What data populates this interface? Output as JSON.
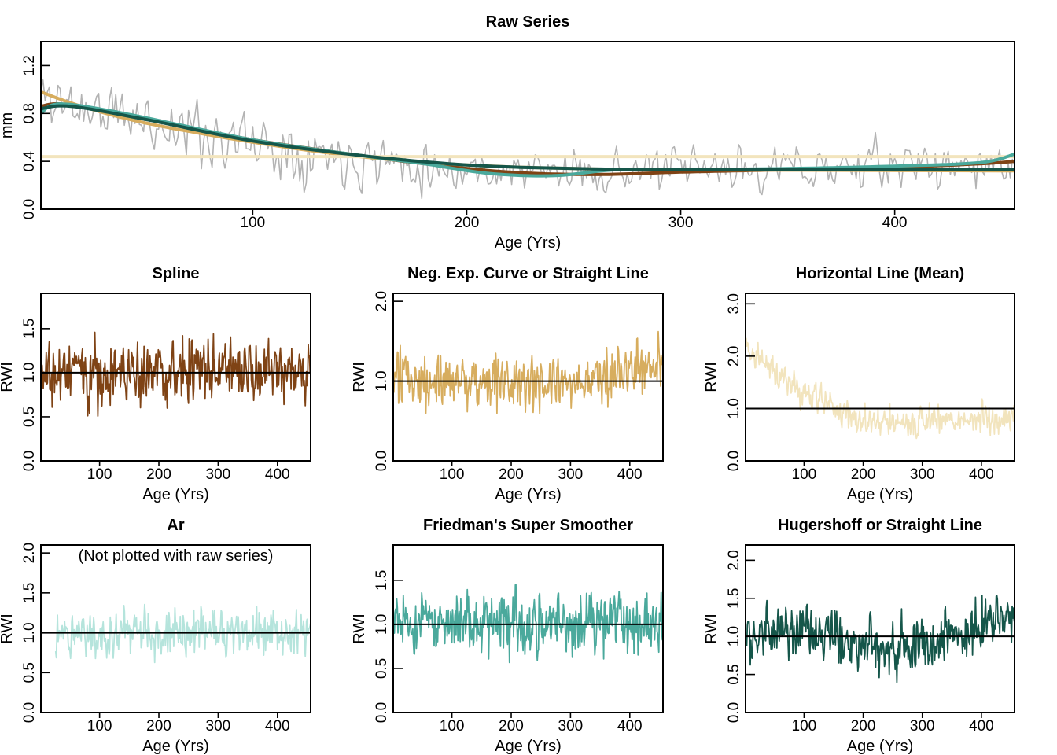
{
  "chart_data": [
    {
      "type": "line",
      "title": "Raw Series",
      "xlabel": "Age (Yrs)",
      "ylabel": "mm",
      "xlim": [
        1,
        456
      ],
      "ylim": [
        0.0,
        1.4
      ],
      "xticks": [
        100,
        200,
        300,
        400
      ],
      "yticks": [
        0.0,
        0.4,
        0.8,
        1.2
      ],
      "yticklabels": [
        "0.0",
        "0.4",
        "0.8",
        "1.2"
      ],
      "raw_series": {
        "color": "#b3b3b3",
        "n": 456,
        "level": [
          [
            1,
            0.95
          ],
          [
            20,
            0.85
          ],
          [
            60,
            0.7
          ],
          [
            100,
            0.55
          ],
          [
            150,
            0.44
          ],
          [
            200,
            0.33
          ],
          [
            250,
            0.31
          ],
          [
            300,
            0.33
          ],
          [
            400,
            0.36
          ],
          [
            456,
            0.38
          ]
        ],
        "amp": 0.38,
        "seed": 11,
        "min": 0.02,
        "max": 1.35
      },
      "curves": [
        {
          "name": "Spline",
          "color": "#7f4315",
          "points": [
            [
              1,
              0.86
            ],
            [
              10,
              0.88
            ],
            [
              30,
              0.82
            ],
            [
              60,
              0.72
            ],
            [
              100,
              0.58
            ],
            [
              150,
              0.45
            ],
            [
              180,
              0.38
            ],
            [
              220,
              0.31
            ],
            [
              260,
              0.29
            ],
            [
              300,
              0.31
            ],
            [
              350,
              0.33
            ],
            [
              400,
              0.35
            ],
            [
              440,
              0.38
            ],
            [
              456,
              0.4
            ]
          ]
        },
        {
          "name": "Neg. Exp. Curve or Straight Line",
          "color": "#d7ad5e",
          "points": [
            [
              1,
              0.98
            ],
            [
              20,
              0.86
            ],
            [
              50,
              0.72
            ],
            [
              100,
              0.56
            ],
            [
              150,
              0.44
            ],
            [
              200,
              0.37
            ],
            [
              250,
              0.34
            ],
            [
              300,
              0.33
            ],
            [
              456,
              0.32
            ]
          ]
        },
        {
          "name": "Horizontal Line (Mean)",
          "color": "#f2e4bd",
          "points": [
            [
              1,
              0.44
            ],
            [
              456,
              0.44
            ]
          ]
        },
        {
          "name": "Friedman's Super Smoother",
          "color": "#4aa99c",
          "points": [
            [
              1,
              0.8
            ],
            [
              10,
              0.88
            ],
            [
              40,
              0.8
            ],
            [
              100,
              0.58
            ],
            [
              150,
              0.45
            ],
            [
              180,
              0.38
            ],
            [
              210,
              0.3
            ],
            [
              240,
              0.28
            ],
            [
              270,
              0.33
            ],
            [
              300,
              0.33
            ],
            [
              350,
              0.34
            ],
            [
              400,
              0.36
            ],
            [
              440,
              0.39
            ],
            [
              456,
              0.46
            ]
          ]
        },
        {
          "name": "Hugershoff or Straight Line",
          "color": "#15564a",
          "points": [
            [
              1,
              0.84
            ],
            [
              15,
              0.86
            ],
            [
              50,
              0.75
            ],
            [
              100,
              0.57
            ],
            [
              150,
              0.45
            ],
            [
              200,
              0.37
            ],
            [
              250,
              0.34
            ],
            [
              300,
              0.33
            ],
            [
              350,
              0.33
            ],
            [
              456,
              0.33
            ]
          ]
        }
      ]
    },
    {
      "type": "line",
      "title": "Spline",
      "xlabel": "Age (Yrs)",
      "ylabel": "RWI",
      "xlim": [
        1,
        456
      ],
      "ylim": [
        0.0,
        1.9
      ],
      "xticks": [
        100,
        200,
        300,
        400
      ],
      "yticks": [
        0.0,
        0.5,
        1.0,
        1.5
      ],
      "yticklabels": [
        "0.0",
        "0.5",
        "1.0",
        "1.5"
      ],
      "refline": 1.0,
      "series": {
        "color": "#7f4315",
        "n": 456,
        "x_start": 1,
        "level": [
          [
            1,
            1.0
          ],
          [
            456,
            1.0
          ]
        ],
        "amp": 0.52,
        "seed": 21,
        "min": 0.0,
        "max": 1.9
      }
    },
    {
      "type": "line",
      "title": "Neg. Exp. Curve or Straight Line",
      "xlabel": "Age (Yrs)",
      "ylabel": "RWI",
      "xlim": [
        1,
        456
      ],
      "ylim": [
        0.0,
        2.1
      ],
      "xticks": [
        100,
        200,
        300,
        400
      ],
      "yticks": [
        0.0,
        1.0,
        2.0
      ],
      "yticklabels": [
        "0.0",
        "1.0",
        "2.0"
      ],
      "refline": 1.0,
      "series": {
        "color": "#d7ad5e",
        "n": 456,
        "x_start": 1,
        "level": [
          [
            1,
            1.0
          ],
          [
            100,
            1.05
          ],
          [
            250,
            0.9
          ],
          [
            350,
            1.05
          ],
          [
            456,
            1.2
          ]
        ],
        "amp": 0.5,
        "seed": 31,
        "min": 0.0,
        "max": 1.9
      }
    },
    {
      "type": "line",
      "title": "Horizontal Line (Mean)",
      "xlabel": "Age (Yrs)",
      "ylabel": "RWI",
      "xlim": [
        1,
        456
      ],
      "ylim": [
        0.0,
        3.2
      ],
      "xticks": [
        100,
        200,
        300,
        400
      ],
      "yticks": [
        0.0,
        1.0,
        2.0,
        3.0
      ],
      "yticklabels": [
        "0.0",
        "1.0",
        "2.0",
        "3.0"
      ],
      "refline": 1.0,
      "series": {
        "color": "#f2e4bd",
        "n": 456,
        "x_start": 1,
        "level": [
          [
            1,
            2.2
          ],
          [
            30,
            1.9
          ],
          [
            60,
            1.6
          ],
          [
            100,
            1.3
          ],
          [
            150,
            1.0
          ],
          [
            200,
            0.75
          ],
          [
            250,
            0.7
          ],
          [
            300,
            0.75
          ],
          [
            400,
            0.8
          ],
          [
            456,
            0.85
          ]
        ],
        "amp": 0.4,
        "seed": 41,
        "min": 0.0,
        "max": 3.0
      }
    },
    {
      "type": "line",
      "title": "Ar",
      "annotation": "(Not plotted with raw series)",
      "xlabel": "Age (Yrs)",
      "ylabel": "RWI",
      "xlim": [
        1,
        456
      ],
      "ylim": [
        0.0,
        2.1
      ],
      "xticks": [
        100,
        200,
        300,
        400
      ],
      "yticks": [
        0.0,
        0.5,
        1.0,
        1.5,
        2.0
      ],
      "yticklabels": [
        "0.0",
        "0.5",
        "1.0",
        "1.5",
        "2.0"
      ],
      "refline": 1.0,
      "series": {
        "color": "#b5e4dc",
        "n": 431,
        "x_start": 26,
        "level": [
          [
            26,
            1.0
          ],
          [
            456,
            1.0
          ]
        ],
        "amp": 0.4,
        "seed": 51,
        "min": 0.02,
        "max": 1.8
      }
    },
    {
      "type": "line",
      "title": "Friedman's Super Smoother",
      "xlabel": "Age (Yrs)",
      "ylabel": "RWI",
      "xlim": [
        1,
        456
      ],
      "ylim": [
        0.0,
        1.9
      ],
      "xticks": [
        100,
        200,
        300,
        400
      ],
      "yticks": [
        0.0,
        0.5,
        1.0,
        1.5
      ],
      "yticklabels": [
        "0.0",
        "0.5",
        "1.0",
        "1.5"
      ],
      "refline": 1.0,
      "series": {
        "color": "#4aa99c",
        "n": 456,
        "x_start": 1,
        "level": [
          [
            1,
            1.0
          ],
          [
            456,
            1.0
          ]
        ],
        "amp": 0.5,
        "seed": 61,
        "min": 0.0,
        "max": 1.85
      }
    },
    {
      "type": "line",
      "title": "Hugershoff or Straight Line",
      "xlabel": "Age (Yrs)",
      "ylabel": "RWI",
      "xlim": [
        1,
        456
      ],
      "ylim": [
        0.0,
        2.2
      ],
      "xticks": [
        100,
        200,
        300,
        400
      ],
      "yticks": [
        0.0,
        0.5,
        1.0,
        1.5,
        2.0
      ],
      "yticklabels": [
        "0.0",
        "0.5",
        "1.0",
        "1.5",
        "2.0"
      ],
      "refline": 1.0,
      "series": {
        "color": "#15564a",
        "n": 456,
        "x_start": 1,
        "level": [
          [
            1,
            1.0
          ],
          [
            100,
            1.05
          ],
          [
            250,
            0.85
          ],
          [
            350,
            1.05
          ],
          [
            456,
            1.25
          ]
        ],
        "amp": 0.48,
        "seed": 71,
        "min": 0.0,
        "max": 1.9
      }
    }
  ]
}
